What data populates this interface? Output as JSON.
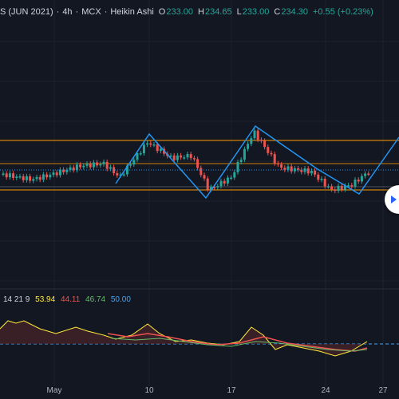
{
  "header": {
    "symbol": "S (JUN 2021)",
    "interval": "4h",
    "exchange": "MCX",
    "chart_type": "Heikin Ashi",
    "ohlc": [
      {
        "label": "O",
        "value": "233.00"
      },
      {
        "label": "H",
        "value": "234.65"
      },
      {
        "label": "L",
        "value": "233.00"
      },
      {
        "label": "C",
        "value": "234.30"
      }
    ],
    "change": "+0.55 (+0.23%)"
  },
  "indicator": {
    "params": "14 21 9",
    "values": [
      {
        "text": "53.94",
        "color": "#ffeb3b"
      },
      {
        "text": "44.11",
        "color": "#ef5350"
      },
      {
        "text": "46.74",
        "color": "#66bb6a"
      },
      {
        "text": "50.00",
        "color": "#42a5f5"
      }
    ]
  },
  "x_axis": [
    "May",
    "10",
    "17",
    "24",
    "27"
  ],
  "colors": {
    "background": "#131722",
    "up": "#26a69a",
    "down": "#ef5350",
    "pattern": "#2196f3",
    "channel": "#ff9800"
  },
  "chart_data": {
    "type": "candlestick",
    "series": [
      {
        "name": "Heikin Ashi"
      }
    ]
  },
  "scroll_button_icon": "chevron-right-icon"
}
